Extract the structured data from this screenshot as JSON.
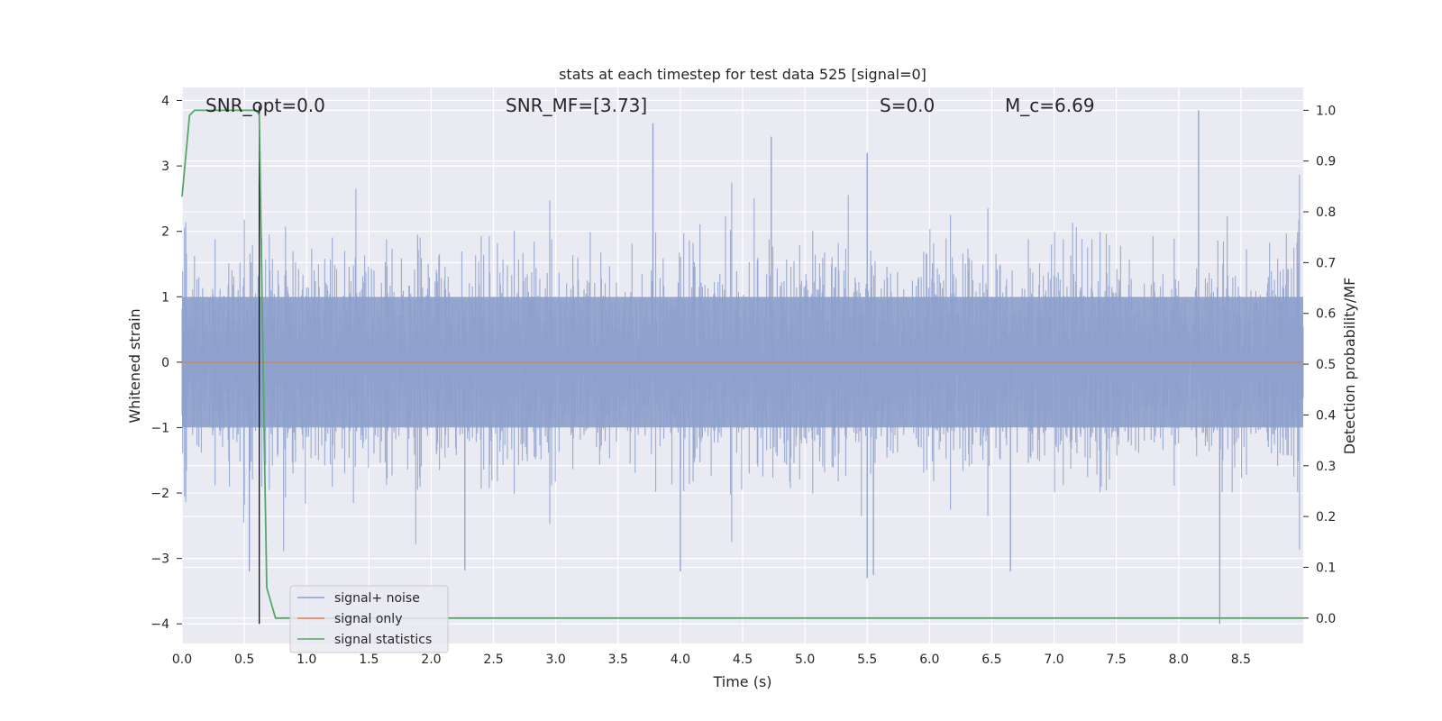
{
  "chart_data": {
    "type": "line",
    "title": "stats at each timestep for test data 525 [signal=0]",
    "xlabel": "Time (s)",
    "ylabel": "Whitened strain",
    "ylabel_right": "Detection probability/MF",
    "xlim": [
      0.0,
      9.0
    ],
    "ylim": [
      -4.3,
      4.2
    ],
    "ylim_right": [
      -0.05,
      1.045
    ],
    "x_ticks": [
      0.0,
      0.5,
      1.0,
      1.5,
      2.0,
      2.5,
      3.0,
      3.5,
      4.0,
      4.5,
      5.0,
      5.5,
      6.0,
      6.5,
      7.0,
      7.5,
      8.0,
      8.5
    ],
    "x_tick_labels": [
      "0.0",
      "0.5",
      "1.0",
      "1.5",
      "2.0",
      "2.5",
      "3.0",
      "3.5",
      "4.0",
      "4.5",
      "5.0",
      "5.5",
      "6.0",
      "6.5",
      "7.0",
      "7.5",
      "8.0",
      "8.5"
    ],
    "y_ticks": [
      4,
      3,
      2,
      1,
      0,
      -1,
      -2,
      -3,
      -4
    ],
    "y_tick_labels": [
      "4",
      "3",
      "2",
      "1",
      "0",
      "−1",
      "−2",
      "−3",
      "−4"
    ],
    "y_ticks_right": [
      1.0,
      0.9,
      0.8,
      0.7,
      0.6,
      0.5,
      0.4,
      0.3,
      0.2,
      0.1,
      0.0
    ],
    "y_tick_labels_right": [
      "1.0",
      "0.9",
      "0.8",
      "0.7",
      "0.6",
      "0.5",
      "0.4",
      "0.3",
      "0.2",
      "0.1",
      "0.0"
    ],
    "grid": true,
    "legend_position": "lower-left",
    "annotations": [
      {
        "id": "snr-opt",
        "text": "SNR_opt=0.0"
      },
      {
        "id": "snr-mf",
        "text": "SNR_MF=[3.73]"
      },
      {
        "id": "s-val",
        "text": "S=0.0"
      },
      {
        "id": "mc-val",
        "text": "M_c=6.69"
      }
    ],
    "series": [
      {
        "name": "signal+ noise",
        "color": "#8da0cb",
        "style": "noise",
        "noise_sigma": 0.75,
        "x_range": [
          0.0,
          9.0
        ],
        "notable_peaks": [
          {
            "x": 3.78,
            "y": 3.65
          },
          {
            "x": 4.73,
            "y": 3.45
          },
          {
            "x": 5.5,
            "y": 3.2
          },
          {
            "x": 8.16,
            "y": 3.85
          },
          {
            "x": 5.5,
            "y": -3.3
          },
          {
            "x": 5.55,
            "y": -3.25
          },
          {
            "x": 6.65,
            "y": -3.2
          },
          {
            "x": 8.33,
            "y": -4.0
          },
          {
            "x": 0.54,
            "y": -3.2
          },
          {
            "x": 2.27,
            "y": -3.18
          },
          {
            "x": 4.0,
            "y": -3.2
          }
        ]
      },
      {
        "name": "signal only",
        "color": "#dd8452",
        "x": [
          0.0,
          9.0
        ],
        "y": [
          0.0,
          0.0
        ]
      },
      {
        "name": "signal statistics",
        "color": "#55a868",
        "axis": "right",
        "x": [
          0.0,
          0.06,
          0.1,
          0.2,
          0.3,
          0.4,
          0.5,
          0.55,
          0.6,
          0.62,
          0.66,
          0.68,
          0.75,
          1.0,
          2.0,
          3.0,
          4.0,
          5.0,
          6.0,
          7.0,
          8.0,
          9.0
        ],
        "y": [
          0.83,
          0.99,
          1.0,
          1.0,
          1.0,
          1.0,
          1.0,
          1.0,
          1.0,
          0.99,
          0.35,
          0.06,
          0.0,
          0.0,
          0.0,
          0.0,
          0.0,
          0.0,
          0.0,
          0.0,
          0.0,
          0.0
        ]
      }
    ],
    "marker_line": {
      "x": 0.62,
      "y_from": -4.0,
      "y_to": 3.92,
      "color": "#000000"
    }
  }
}
